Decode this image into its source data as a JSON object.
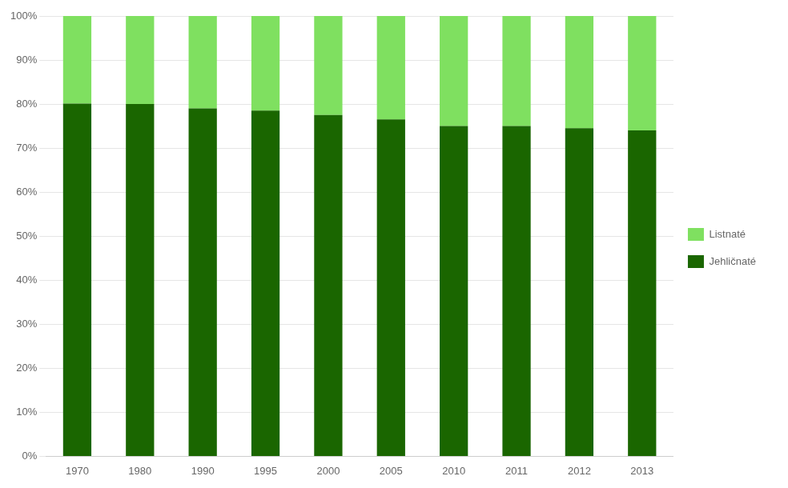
{
  "chart_data": {
    "type": "bar",
    "stacked": true,
    "categories": [
      "1970",
      "1980",
      "1990",
      "1995",
      "2000",
      "2005",
      "2010",
      "2011",
      "2012",
      "2013"
    ],
    "series": [
      {
        "name": "Jehličnaté",
        "color": "#1a6600",
        "values": [
          80.1,
          80.0,
          79.0,
          78.5,
          77.5,
          76.5,
          75.0,
          75.0,
          74.5,
          74.0
        ]
      },
      {
        "name": "Listnaté",
        "color": "#7FE060",
        "values": [
          19.9,
          20.0,
          21.0,
          21.5,
          22.5,
          23.5,
          25.0,
          25.0,
          25.5,
          26.0
        ]
      }
    ],
    "ylim": [
      0,
      100
    ],
    "yticks": [
      {
        "value": 0,
        "label": "0%"
      },
      {
        "value": 10,
        "label": "10%"
      },
      {
        "value": 20,
        "label": "20%"
      },
      {
        "value": 30,
        "label": "30%"
      },
      {
        "value": 40,
        "label": "40%"
      },
      {
        "value": 50,
        "label": "50%"
      },
      {
        "value": 60,
        "label": "60%"
      },
      {
        "value": 70,
        "label": "70%"
      },
      {
        "value": 80,
        "label": "80%"
      },
      {
        "value": 90,
        "label": "90%"
      },
      {
        "value": 100,
        "label": "100%"
      }
    ],
    "grid": true,
    "legend": "right"
  }
}
